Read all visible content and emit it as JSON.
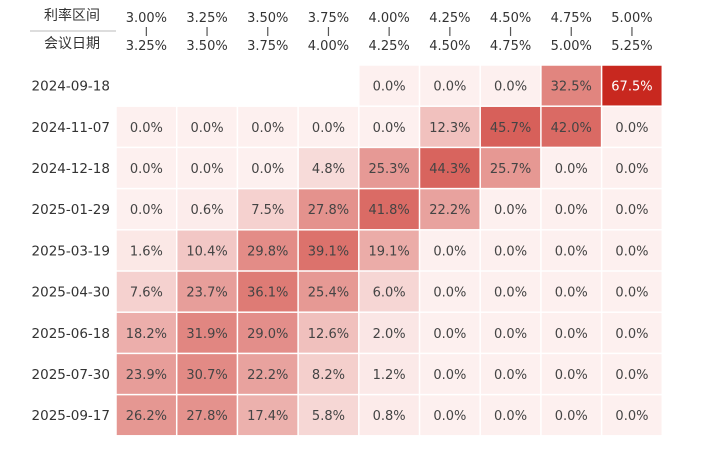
{
  "chart_data": {
    "type": "heatmap",
    "row_header_label": "会议日期",
    "col_header_label": "利率区间",
    "columns": [
      {
        "low": "3.00%",
        "high": "3.25%"
      },
      {
        "low": "3.25%",
        "high": "3.50%"
      },
      {
        "low": "3.50%",
        "high": "3.75%"
      },
      {
        "low": "3.75%",
        "high": "4.00%"
      },
      {
        "low": "4.00%",
        "high": "4.25%"
      },
      {
        "low": "4.25%",
        "high": "4.50%"
      },
      {
        "low": "4.50%",
        "high": "4.75%"
      },
      {
        "low": "4.75%",
        "high": "5.00%"
      },
      {
        "low": "5.00%",
        "high": "5.25%"
      }
    ],
    "rows": [
      "2024-09-18",
      "2024-11-07",
      "2024-12-18",
      "2025-01-29",
      "2025-03-19",
      "2025-04-30",
      "2025-06-18",
      "2025-07-30",
      "2025-09-17"
    ],
    "values": [
      [
        null,
        null,
        null,
        null,
        0.0,
        0.0,
        0.0,
        32.5,
        67.5
      ],
      [
        0.0,
        0.0,
        0.0,
        0.0,
        0.0,
        12.3,
        45.7,
        42.0,
        0.0
      ],
      [
        0.0,
        0.0,
        0.0,
        4.8,
        25.3,
        44.3,
        25.7,
        0.0,
        0.0
      ],
      [
        0.0,
        0.6,
        7.5,
        27.8,
        41.8,
        22.2,
        0.0,
        0.0,
        0.0
      ],
      [
        1.6,
        10.4,
        29.8,
        39.1,
        19.1,
        0.0,
        0.0,
        0.0,
        0.0
      ],
      [
        7.6,
        23.7,
        36.1,
        25.4,
        6.0,
        0.0,
        0.0,
        0.0,
        0.0
      ],
      [
        18.2,
        31.9,
        29.0,
        12.6,
        2.0,
        0.0,
        0.0,
        0.0,
        0.0
      ],
      [
        23.9,
        30.7,
        22.2,
        8.2,
        1.2,
        0.0,
        0.0,
        0.0,
        0.0
      ],
      [
        26.2,
        27.8,
        17.4,
        5.8,
        0.8,
        0.0,
        0.0,
        0.0,
        0.0
      ]
    ],
    "value_suffix": "%",
    "colors": {
      "low": "#fdf0ef",
      "high": "#c8281f",
      "text_dark": "#444444",
      "text_light": "#ffffff",
      "header_text": "#333333",
      "tick": "#555555"
    }
  }
}
